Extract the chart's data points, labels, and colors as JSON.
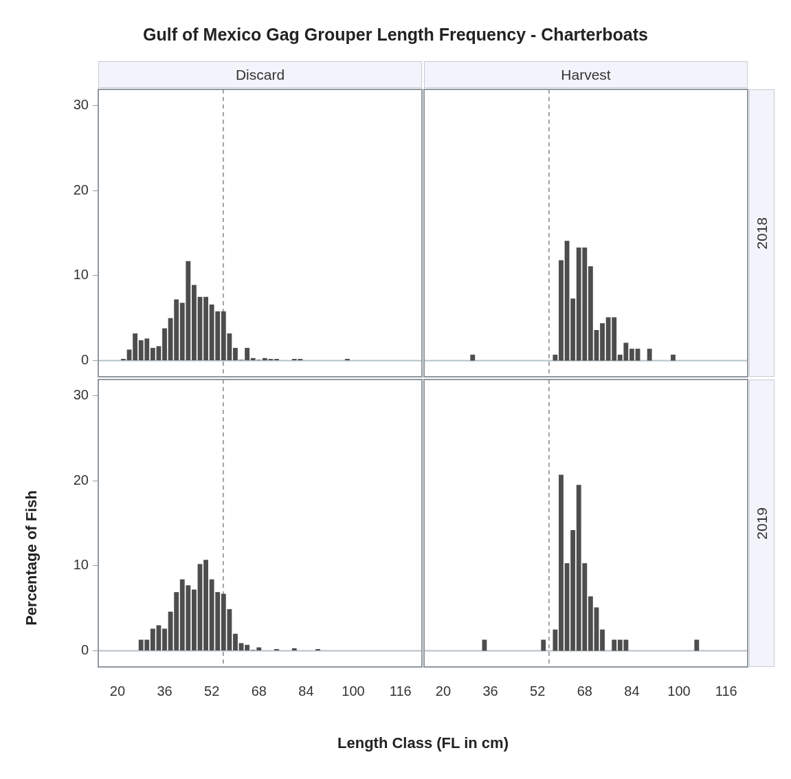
{
  "chart_data": [
    {
      "type": "histogram",
      "title": "Gulf of Mexico Gag Grouper Length Frequency - Charterboats",
      "subtitle": "Discard",
      "color": "#4d4d4d",
      "bins": [
        21,
        23,
        25,
        27,
        29,
        31,
        33,
        35,
        37,
        39,
        41,
        43,
        45,
        47,
        49,
        51,
        53,
        55,
        57,
        59,
        61,
        63,
        65,
        67,
        69,
        71,
        73,
        75,
        77,
        79,
        81,
        83,
        85,
        87,
        89,
        91,
        93,
        95,
        97,
        99
      ],
      "values": [
        0.2,
        1.3,
        3.2,
        2.4,
        2.6,
        1.5,
        1.7,
        3.8,
        5.0,
        7.2,
        6.8,
        11.7,
        8.9,
        7.5,
        7.5,
        6.6,
        5.8,
        5.8,
        3.2,
        1.5,
        0.1,
        1.5,
        0.3,
        0.1,
        0.3,
        0.2,
        0.2,
        0,
        0,
        0.2,
        0.2,
        0,
        0,
        0,
        0,
        0,
        0,
        0,
        0.2
      ],
      "xlim": [
        13.5,
        123.3
      ],
      "xticks": [
        20,
        36,
        52,
        68,
        84,
        100,
        116
      ],
      "ylim": [
        -1.9,
        31.9
      ],
      "yticks": [
        0,
        10,
        20,
        30
      ],
      "tick_labels": "y",
      "ref_lines": [
        {
          "axis": "x",
          "value": 55.9,
          "color": "#a0a0a0",
          "line_style": "dashed"
        },
        {
          "axis": "y",
          "value": 0,
          "color": "#b4c0c8",
          "line_style": "solid"
        }
      ]
    },
    {
      "type": "histogram",
      "subtitle": "Harvest",
      "y2label": "2018",
      "color": "#4d4d4d",
      "bins": [
        29,
        31,
        33,
        35,
        37,
        39,
        41,
        43,
        45,
        47,
        49,
        51,
        53,
        55,
        57,
        59,
        61,
        63,
        65,
        67,
        69,
        71,
        73,
        75,
        77,
        79,
        81,
        83,
        85,
        87,
        89,
        91,
        93,
        95,
        97,
        99
      ],
      "values": [
        0.7,
        0,
        0,
        0,
        0,
        0,
        0,
        0,
        0,
        0,
        0,
        0,
        0,
        0,
        0.7,
        11.8,
        14.1,
        7.3,
        13.3,
        13.3,
        11.1,
        3.6,
        4.4,
        5.1,
        5.1,
        0.7,
        2.1,
        1.4,
        1.4,
        0,
        1.4,
        0,
        0,
        0,
        0.7
      ],
      "xlim": [
        13.5,
        123.3
      ],
      "xticks": [
        20,
        36,
        52,
        68,
        84,
        100,
        116
      ],
      "ylim": [
        -1.9,
        31.9
      ],
      "yticks": [
        0,
        10,
        20,
        30
      ],
      "tick_labels": false,
      "ref_lines": [
        {
          "axis": "x",
          "value": 55.9,
          "color": "#a0a0a0",
          "line_style": "dashed"
        },
        {
          "axis": "y",
          "value": 0,
          "color": "#b4c0c8",
          "line_style": "solid"
        }
      ]
    },
    {
      "type": "histogram",
      "xlabel": "Length Class (FL in cm)",
      "ylabel": "Percentage of Fish",
      "color": "#4d4d4d",
      "bins": [
        27,
        29,
        31,
        33,
        35,
        37,
        39,
        41,
        43,
        45,
        47,
        49,
        51,
        53,
        55,
        57,
        59,
        61,
        63,
        65,
        67,
        69,
        71,
        73,
        75,
        77,
        79,
        81,
        83,
        85,
        87,
        89
      ],
      "values": [
        1.3,
        1.3,
        2.6,
        3.0,
        2.6,
        4.6,
        6.9,
        8.4,
        7.7,
        7.2,
        10.2,
        10.7,
        8.4,
        6.9,
        6.7,
        4.9,
        2.0,
        0.9,
        0.7,
        0.1,
        0.4,
        0,
        0,
        0.2,
        0,
        0,
        0.3,
        0,
        0,
        0,
        0.2
      ],
      "xlim": [
        13.5,
        123.3
      ],
      "xticks": [
        20,
        36,
        52,
        68,
        84,
        100,
        116
      ],
      "ylim": [
        -1.9,
        31.9
      ],
      "yticks": [
        0,
        10,
        20,
        30
      ],
      "ref_lines": [
        {
          "axis": "x",
          "value": 55.9,
          "color": "#a0a0a0",
          "line_style": "dashed"
        },
        {
          "axis": "y",
          "value": 0,
          "color": "#b4c0c8",
          "line_style": "solid"
        }
      ]
    },
    {
      "type": "histogram",
      "y2label": "2019",
      "color": "#4d4d4d",
      "bins": [
        33,
        35,
        37,
        39,
        41,
        43,
        45,
        47,
        49,
        51,
        53,
        55,
        57,
        59,
        61,
        63,
        65,
        67,
        69,
        71,
        73,
        75,
        77,
        79,
        81,
        83,
        85,
        87,
        89,
        91,
        93,
        95,
        97,
        99,
        101,
        103,
        105,
        107
      ],
      "values": [
        1.3,
        0,
        0,
        0,
        0,
        0,
        0,
        0,
        0,
        0,
        1.3,
        0,
        2.5,
        20.7,
        10.3,
        14.2,
        19.5,
        10.3,
        6.4,
        5.1,
        2.5,
        0,
        1.3,
        1.3,
        1.3,
        0,
        0,
        0,
        0,
        0,
        0,
        0,
        0,
        0,
        0,
        0,
        1.3
      ],
      "xlim": [
        13.5,
        123.3
      ],
      "xticks": [
        20,
        36,
        52,
        68,
        84,
        100,
        116
      ],
      "ylim": [
        -1.9,
        31.9
      ],
      "yticks": [
        0,
        10,
        20,
        30
      ],
      "tick_labels": "x",
      "ref_lines": [
        {
          "axis": "x",
          "value": 55.9,
          "color": "#a0a0a0",
          "line_style": "dashed"
        },
        {
          "axis": "y",
          "value": 0,
          "color": "#b4c0c8",
          "line_style": "solid"
        }
      ]
    }
  ]
}
